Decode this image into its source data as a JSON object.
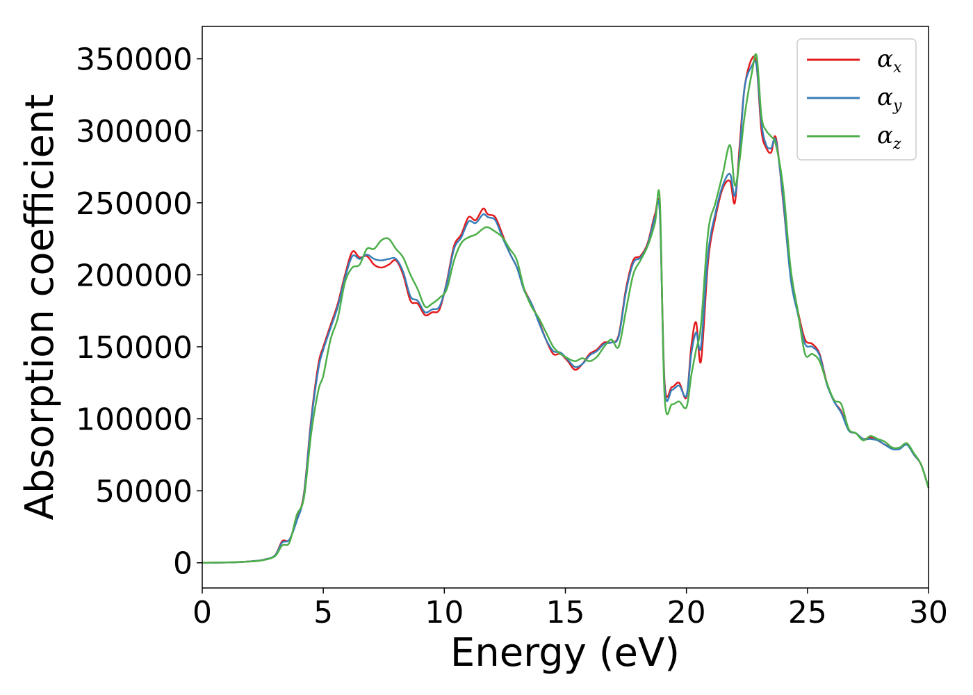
{
  "chart_data": {
    "type": "line",
    "title": "",
    "xlabel": "Energy (eV)",
    "ylabel": "Absorption coefficient",
    "xlim": [
      0,
      30
    ],
    "ylim": [
      -17500,
      372500
    ],
    "xticks": [
      0,
      5,
      10,
      15,
      20,
      25,
      30
    ],
    "xtick_labels": [
      "0",
      "5",
      "10",
      "15",
      "20",
      "25",
      "30"
    ],
    "yticks": [
      0,
      50000,
      100000,
      150000,
      200000,
      250000,
      300000,
      350000
    ],
    "ytick_labels": [
      "0",
      "50000",
      "100000",
      "150000",
      "200000",
      "250000",
      "300000",
      "350000"
    ],
    "grid": false,
    "legend_position": "top-right",
    "series": [
      {
        "name": "α",
        "subscript": "x",
        "color": "#e41a1c",
        "x": [
          0,
          1,
          2,
          2.5,
          3,
          3.3,
          3.6,
          3.9,
          4.2,
          4.5,
          4.8,
          5,
          5.3,
          5.6,
          5.9,
          6.2,
          6.5,
          6.8,
          7.1,
          7.4,
          7.7,
          8,
          8.3,
          8.6,
          8.9,
          9.2,
          9.5,
          9.8,
          10.1,
          10.4,
          10.7,
          11,
          11.3,
          11.6,
          11.8,
          12.1,
          12.4,
          12.7,
          13,
          13.3,
          13.6,
          13.9,
          14.2,
          14.5,
          14.8,
          15.1,
          15.4,
          15.7,
          16,
          16.3,
          16.6,
          16.9,
          17.2,
          17.5,
          17.8,
          18.1,
          18.4,
          18.7,
          18.9,
          19.1,
          19.4,
          19.7,
          20,
          20.2,
          20.4,
          20.6,
          20.9,
          21.2,
          21.5,
          21.8,
          22,
          22.2,
          22.4,
          22.7,
          22.9,
          23.1,
          23.3,
          23.5,
          23.7,
          24,
          24.3,
          24.6,
          24.9,
          25.2,
          25.5,
          25.8,
          26.1,
          26.4,
          26.7,
          27,
          27.3,
          27.6,
          27.9,
          28.2,
          28.5,
          28.8,
          29.1,
          29.4,
          29.7,
          30
        ],
        "y": [
          0,
          200,
          1000,
          2000,
          5000,
          15000,
          16000,
          30000,
          48000,
          100000,
          138000,
          150000,
          165000,
          180000,
          200000,
          216000,
          212000,
          213000,
          207000,
          205000,
          207000,
          210000,
          200000,
          182000,
          180000,
          172000,
          174000,
          176000,
          195000,
          220000,
          228000,
          240000,
          238000,
          246000,
          242000,
          240000,
          228000,
          215000,
          205000,
          190000,
          180000,
          168000,
          155000,
          145000,
          145000,
          140000,
          134000,
          138000,
          145000,
          148000,
          153000,
          153000,
          158000,
          190000,
          210000,
          213000,
          222000,
          242000,
          244000,
          125000,
          122000,
          125000,
          115000,
          150000,
          167000,
          140000,
          210000,
          240000,
          260000,
          265000,
          250000,
          290000,
          330000,
          350000,
          345000,
          300000,
          288000,
          285000,
          295000,
          250000,
          200000,
          175000,
          155000,
          152000,
          145000,
          125000,
          112000,
          105000,
          92000,
          90000,
          86000,
          87000,
          85000,
          82000,
          80000,
          79000,
          83000,
          75000,
          68000,
          52000
        ]
      },
      {
        "name": "α",
        "subscript": "y",
        "color": "#377eb8",
        "x": [
          0,
          1,
          2,
          2.5,
          3,
          3.3,
          3.6,
          3.9,
          4.2,
          4.5,
          4.8,
          5,
          5.3,
          5.6,
          5.9,
          6.2,
          6.5,
          6.8,
          7.1,
          7.4,
          7.7,
          8,
          8.3,
          8.6,
          8.9,
          9.2,
          9.5,
          9.8,
          10.1,
          10.4,
          10.7,
          11,
          11.3,
          11.6,
          11.8,
          12.1,
          12.4,
          12.7,
          13,
          13.3,
          13.6,
          13.9,
          14.2,
          14.5,
          14.8,
          15.1,
          15.4,
          15.7,
          16,
          16.3,
          16.6,
          16.9,
          17.2,
          17.5,
          17.8,
          18.1,
          18.4,
          18.7,
          18.9,
          19.1,
          19.4,
          19.7,
          20,
          20.2,
          20.4,
          20.6,
          20.9,
          21.2,
          21.5,
          21.8,
          22,
          22.2,
          22.4,
          22.7,
          22.9,
          23.1,
          23.3,
          23.5,
          23.7,
          24,
          24.3,
          24.6,
          24.9,
          25.2,
          25.5,
          25.8,
          26.1,
          26.4,
          26.7,
          27,
          27.3,
          27.6,
          27.9,
          28.2,
          28.5,
          28.8,
          29.1,
          29.4,
          29.7,
          30
        ],
        "y": [
          0,
          200,
          1000,
          2000,
          5000,
          14000,
          16000,
          29000,
          47000,
          98000,
          135000,
          148000,
          163000,
          178000,
          198000,
          213000,
          211000,
          214000,
          211000,
          210000,
          211000,
          211000,
          202000,
          185000,
          182000,
          174000,
          176000,
          178000,
          194000,
          218000,
          226000,
          237000,
          236000,
          242000,
          240000,
          238000,
          226000,
          215000,
          205000,
          189000,
          180000,
          167000,
          155000,
          147000,
          146000,
          141000,
          136000,
          138000,
          144000,
          147000,
          152000,
          153000,
          157000,
          188000,
          208000,
          212000,
          221000,
          240000,
          243000,
          122000,
          120000,
          123000,
          116000,
          145000,
          160000,
          150000,
          215000,
          243000,
          262000,
          270000,
          255000,
          285000,
          330000,
          345000,
          345000,
          305000,
          290000,
          288000,
          293000,
          252000,
          198000,
          173000,
          152000,
          150000,
          144000,
          124000,
          112000,
          104000,
          92000,
          90000,
          86000,
          86000,
          85000,
          82000,
          79000,
          79000,
          82000,
          75000,
          68000,
          52000
        ]
      },
      {
        "name": "α",
        "subscript": "z",
        "color": "#4daf4a",
        "x": [
          0,
          1,
          2,
          2.5,
          3,
          3.3,
          3.6,
          3.9,
          4.2,
          4.5,
          4.8,
          5,
          5.3,
          5.6,
          5.9,
          6.2,
          6.5,
          6.8,
          7.1,
          7.4,
          7.7,
          8,
          8.3,
          8.6,
          8.9,
          9.2,
          9.5,
          9.8,
          10.1,
          10.4,
          10.7,
          11,
          11.3,
          11.6,
          11.8,
          12.1,
          12.4,
          12.7,
          13,
          13.3,
          13.6,
          13.9,
          14.2,
          14.5,
          14.8,
          15.1,
          15.4,
          15.7,
          16,
          16.3,
          16.6,
          16.9,
          17.2,
          17.5,
          17.8,
          18.1,
          18.4,
          18.7,
          18.9,
          19.1,
          19.4,
          19.7,
          20,
          20.2,
          20.4,
          20.6,
          20.9,
          21.2,
          21.5,
          21.8,
          22,
          22.2,
          22.4,
          22.7,
          22.9,
          23.1,
          23.3,
          23.5,
          23.7,
          24,
          24.3,
          24.6,
          24.9,
          25.2,
          25.5,
          25.8,
          26.1,
          26.4,
          26.7,
          27,
          27.3,
          27.6,
          27.9,
          28.2,
          28.5,
          28.8,
          29.1,
          29.4,
          29.7,
          30
        ],
        "y": [
          0,
          200,
          900,
          1800,
          4500,
          12000,
          14000,
          33000,
          45000,
          90000,
          120000,
          130000,
          155000,
          170000,
          195000,
          205000,
          207000,
          218000,
          218000,
          224000,
          225000,
          218000,
          212000,
          200000,
          190000,
          178000,
          180000,
          184000,
          190000,
          210000,
          222000,
          226000,
          228000,
          232000,
          233000,
          230000,
          226000,
          218000,
          210000,
          190000,
          178000,
          170000,
          160000,
          150000,
          145000,
          142000,
          140000,
          142000,
          140000,
          143000,
          150000,
          155000,
          150000,
          175000,
          200000,
          210000,
          220000,
          236000,
          252000,
          115000,
          110000,
          112000,
          108000,
          130000,
          148000,
          165000,
          230000,
          250000,
          270000,
          290000,
          262000,
          280000,
          310000,
          340000,
          352000,
          310000,
          300000,
          296000,
          290000,
          260000,
          205000,
          175000,
          145000,
          145000,
          140000,
          125000,
          113000,
          110000,
          93000,
          90000,
          85000,
          88000,
          86000,
          84000,
          80000,
          80000,
          83000,
          76000,
          68000,
          52000
        ]
      }
    ]
  }
}
